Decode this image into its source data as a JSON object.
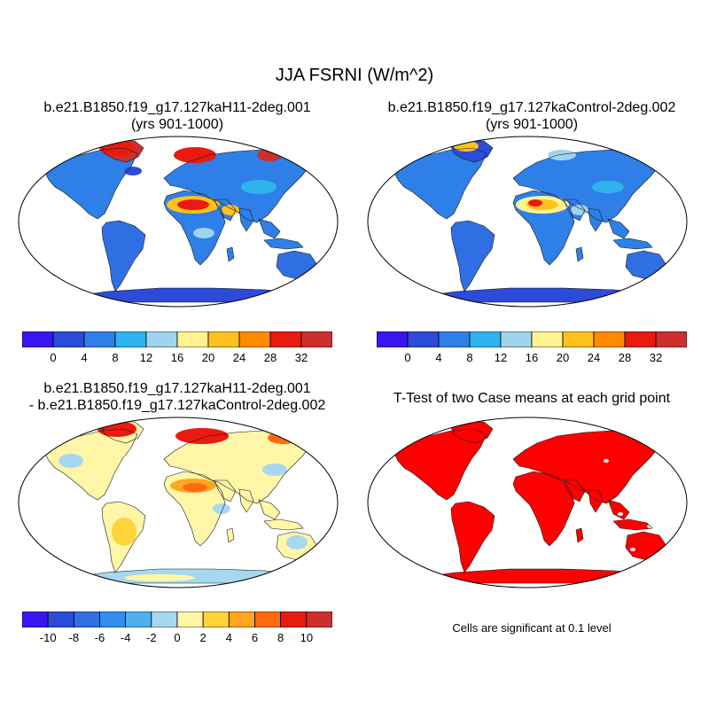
{
  "title": "JJA FSRNI (W/m^2)",
  "panels": {
    "top_left": {
      "title_line1": "b.e21.B1850.f19_g17.127kaH11-2deg.001",
      "title_line2": "(yrs 901-1000)"
    },
    "top_right": {
      "title_line1": "b.e21.B1850.f19_g17.127kaControl-2deg.002",
      "title_line2": "(yrs 901-1000)"
    },
    "bottom_left": {
      "title_line1": "b.e21.B1850.f19_g17.127kaH11-2deg.001",
      "title_line2": "- b.e21.B1850.f19_g17.127kaControl-2deg.002"
    },
    "bottom_right": {
      "title": "T-Test of two Case means at each grid point",
      "note": "Cells are significant at 0.1 level"
    }
  },
  "chart_data": [
    {
      "type": "heatmap",
      "panel": "top_left",
      "colorbar": {
        "colors": [
          "#3b14f2",
          "#2c4bd9",
          "#2f7fe8",
          "#2eb3ef",
          "#9fd4ef",
          "#fff38f",
          "#ffc21c",
          "#ff8a00",
          "#ea1a0f",
          "#cd2f2f"
        ],
        "tick_labels": [
          "0",
          "4",
          "8",
          "12",
          "16",
          "20",
          "24",
          "28",
          "32"
        ]
      }
    },
    {
      "type": "heatmap",
      "panel": "top_right",
      "colorbar": {
        "colors": [
          "#3b14f2",
          "#2c4bd9",
          "#2f7fe8",
          "#2eb3ef",
          "#9fd4ef",
          "#fff38f",
          "#ffc21c",
          "#ff8a00",
          "#ea1a0f",
          "#cd2f2f"
        ],
        "tick_labels": [
          "0",
          "4",
          "8",
          "12",
          "16",
          "20",
          "24",
          "28",
          "32"
        ]
      }
    },
    {
      "type": "heatmap",
      "panel": "bottom_left",
      "colorbar": {
        "colors": [
          "#3b14f2",
          "#2c4bd9",
          "#2f6fe3",
          "#2f8fea",
          "#4fb0ec",
          "#a6d8ef",
          "#fff6a8",
          "#ffd43b",
          "#ffa520",
          "#ff6a10",
          "#ea1a0f",
          "#cd2f2f"
        ],
        "tick_labels": [
          "-10",
          "-8",
          "-6",
          "-4",
          "-2",
          "0",
          "2",
          "4",
          "6",
          "8",
          "10"
        ]
      }
    },
    {
      "type": "heatmap",
      "panel": "bottom_right",
      "colors": [
        "#ff0000"
      ]
    }
  ]
}
